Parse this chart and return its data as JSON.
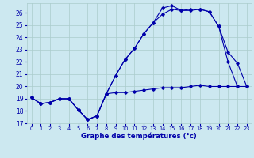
{
  "title": "Graphe des températures (°c)",
  "bg_color": "#cce8f0",
  "grid_color": "#aacccc",
  "line_color": "#0000aa",
  "xlim": [
    -0.5,
    23.5
  ],
  "ylim": [
    17,
    26.8
  ],
  "yticks": [
    17,
    18,
    19,
    20,
    21,
    22,
    23,
    24,
    25,
    26
  ],
  "xticks": [
    0,
    1,
    2,
    3,
    4,
    5,
    6,
    7,
    8,
    9,
    10,
    11,
    12,
    13,
    14,
    15,
    16,
    17,
    18,
    19,
    20,
    21,
    22,
    23
  ],
  "series1_x": [
    0,
    1,
    2,
    3,
    4,
    5,
    6,
    7,
    8,
    9,
    10,
    11,
    12,
    13,
    14,
    15,
    16,
    17,
    18,
    19,
    20,
    21,
    22,
    23
  ],
  "series1_y": [
    19.1,
    18.6,
    18.7,
    19.0,
    19.0,
    18.1,
    17.3,
    17.6,
    19.4,
    19.5,
    19.5,
    19.6,
    19.7,
    19.8,
    19.9,
    19.9,
    19.9,
    20.0,
    20.1,
    20.0,
    20.0,
    20.0,
    20.0,
    20.0
  ],
  "series2_x": [
    0,
    1,
    2,
    3,
    4,
    5,
    6,
    7,
    8,
    9,
    10,
    11,
    12,
    13,
    14,
    15,
    16,
    17,
    18,
    19,
    20,
    21,
    22,
    23
  ],
  "series2_y": [
    19.1,
    18.6,
    18.7,
    19.0,
    19.0,
    18.1,
    17.3,
    17.6,
    19.4,
    20.9,
    22.2,
    23.1,
    24.3,
    25.2,
    25.9,
    26.3,
    26.2,
    26.2,
    26.3,
    26.1,
    24.9,
    22.8,
    21.9,
    20.0
  ],
  "series3_x": [
    0,
    1,
    2,
    3,
    4,
    5,
    6,
    7,
    8,
    9,
    10,
    11,
    12,
    13,
    14,
    15,
    16,
    17,
    18,
    19,
    20,
    21,
    22
  ],
  "series3_y": [
    19.1,
    18.6,
    18.7,
    19.0,
    19.0,
    18.1,
    17.3,
    17.6,
    19.4,
    20.9,
    22.2,
    23.1,
    24.3,
    25.2,
    26.4,
    26.6,
    26.2,
    26.3,
    26.3,
    26.1,
    24.9,
    22.0,
    20.0
  ]
}
